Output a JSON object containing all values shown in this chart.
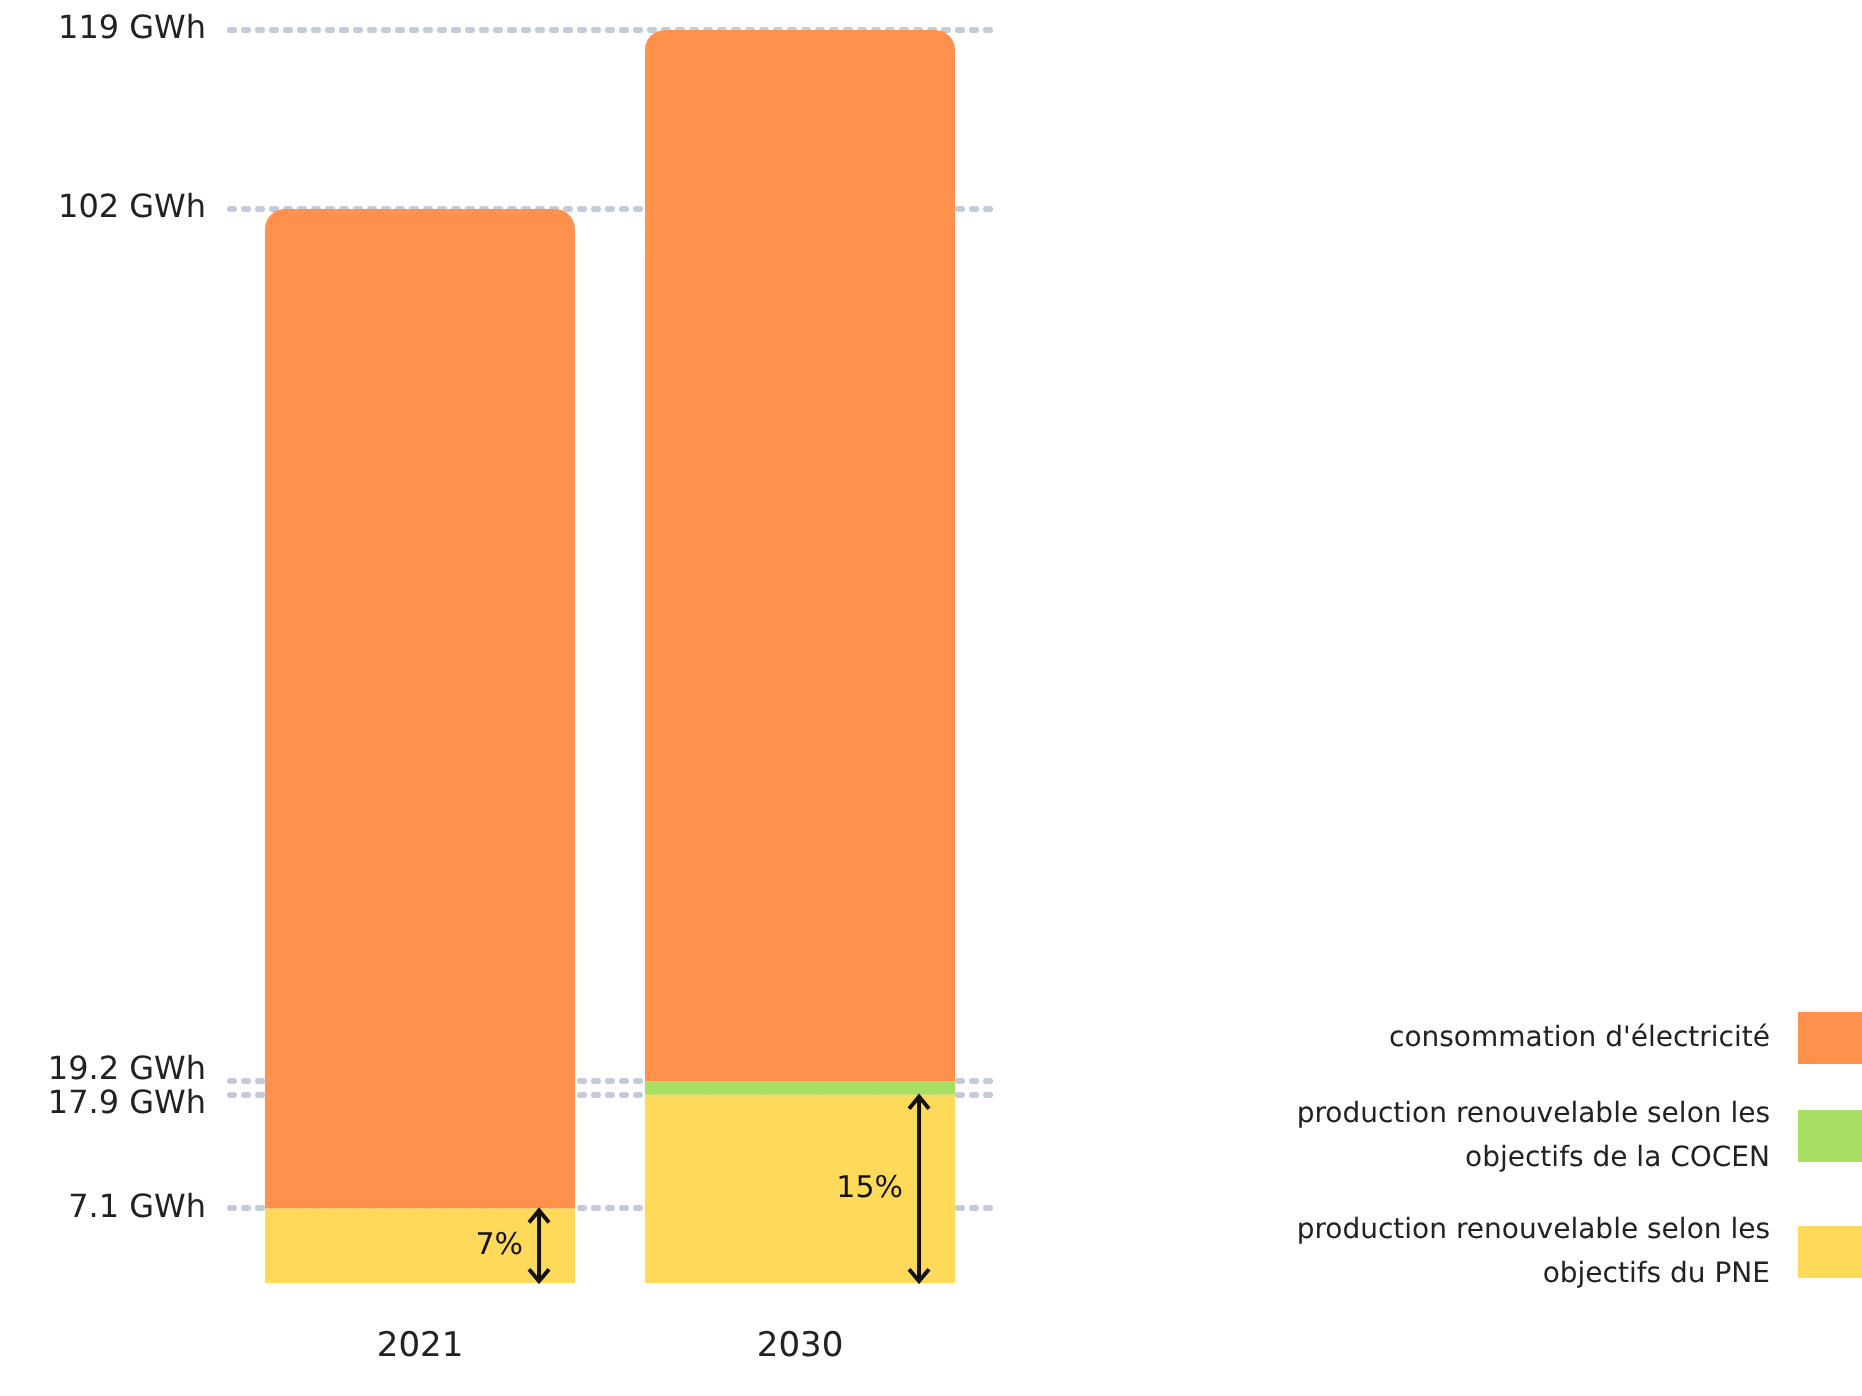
{
  "chart_data": {
    "type": "bar",
    "stacked": true,
    "categories": [
      "2021",
      "2030"
    ],
    "series": [
      {
        "name": "production renouvelable selon les objectifs du PNE",
        "color": "#ffd95a",
        "values": [
          7.1,
          17.9
        ]
      },
      {
        "name": "production renouvelable selon les objectifs de la COCEN",
        "color": "#a8e063",
        "values": [
          null,
          1.3
        ]
      },
      {
        "name": "consommation d'électricité",
        "color": "#ff914d",
        "values": [
          94.9,
          99.8
        ]
      }
    ],
    "ylim": [
      0,
      119
    ],
    "yticks": [
      {
        "value": 7.1,
        "label": "7.1 GWh"
      },
      {
        "value": 17.9,
        "label": "17.9 GWh"
      },
      {
        "value": 19.2,
        "label": "19.2 GWh"
      },
      {
        "value": 102,
        "label": "102 GWh"
      },
      {
        "value": 119,
        "label": "119 GWh"
      }
    ],
    "grid": "y",
    "legend": "bottom right",
    "annotations": [
      {
        "text": "7%",
        "x": "2021",
        "y": 7.1
      },
      {
        "text": "15%",
        "x": "2030",
        "y": 17.9
      }
    ]
  }
}
